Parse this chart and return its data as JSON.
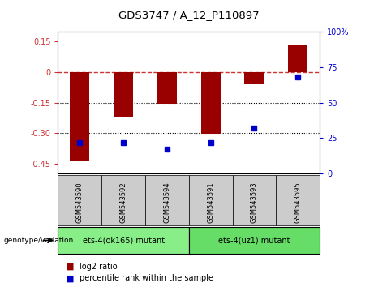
{
  "title": "GDS3747 / A_12_P110897",
  "samples": [
    "GSM543590",
    "GSM543592",
    "GSM543594",
    "GSM543591",
    "GSM543593",
    "GSM543595"
  ],
  "log2_ratios": [
    -0.44,
    -0.22,
    -0.155,
    -0.305,
    -0.055,
    0.135
  ],
  "percentile_ranks": [
    22,
    22,
    17,
    22,
    32,
    68
  ],
  "group1_label": "ets-4(ok165) mutant",
  "group2_label": "ets-4(uz1) mutant",
  "bar_color": "#990000",
  "dot_color": "#0000cc",
  "sample_bg": "#cccccc",
  "group1_bg": "#88ee88",
  "group2_bg": "#66dd66",
  "ylim_left": [
    -0.5,
    0.2
  ],
  "ylim_right": [
    0,
    100
  ],
  "yticks_left": [
    0.15,
    0.0,
    -0.15,
    -0.3,
    -0.45
  ],
  "ytick_labels_left": [
    "0.15",
    "0",
    "-0.15",
    "-0.30",
    "-0.45"
  ],
  "yticks_right": [
    100,
    75,
    50,
    25,
    0
  ],
  "ytick_labels_right": [
    "100%",
    "75",
    "50",
    "25",
    "0"
  ],
  "dotted_lines": [
    -0.15,
    -0.3
  ],
  "zero_line_color": "#cc3333",
  "legend_log2": "log2 ratio",
  "legend_pct": "percentile rank within the sample",
  "genotype_label": "genotype/variation"
}
